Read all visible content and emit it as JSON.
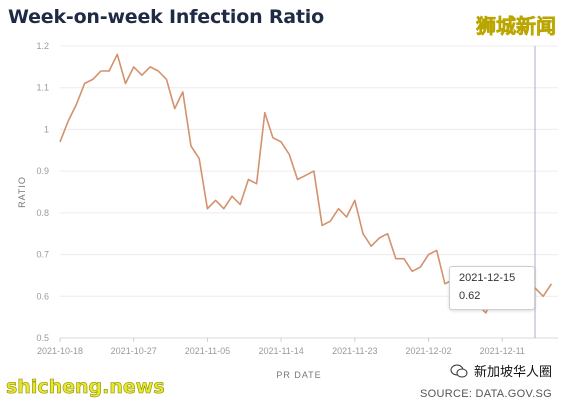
{
  "title": "Week-on-week Infection Ratio",
  "watermarks": {
    "top_right": "狮城新闻",
    "bottom_left": "shicheng.news",
    "bottom_right": "新加坡华人圈"
  },
  "source": "SOURCE: DATA.GOV.SG",
  "tooltip": {
    "date": "2021-12-15",
    "value": "0.62"
  },
  "colors": {
    "line": "#d4916e",
    "grid": "#ececec",
    "title": "#1f2a44",
    "crosshair": "#b9a9c9"
  },
  "chart_data": {
    "type": "line",
    "title": "Week-on-week Infection Ratio",
    "xlabel": "PR DATE",
    "ylabel": "RATIO",
    "ylim": [
      0.5,
      1.2
    ],
    "yticks": [
      0.5,
      0.6,
      0.7,
      0.8,
      0.9,
      1,
      1.1,
      1.2
    ],
    "ytick_labels": [
      "0.5",
      "0.6",
      "0.7",
      "0.8",
      "0.9",
      "1",
      "1.1",
      "1.2"
    ],
    "xticks": [
      "2021-10-18",
      "2021-10-27",
      "2021-11-05",
      "2021-11-14",
      "2021-11-23",
      "2021-12-02",
      "2021-12-11"
    ],
    "xrange": [
      "2021-10-18",
      "2021-12-17"
    ],
    "grid": true,
    "highlight": {
      "date": "2021-12-15",
      "value": 0.62
    },
    "series": [
      {
        "x": [
          "2021-10-18",
          "2021-10-19",
          "2021-10-20",
          "2021-10-21",
          "2021-10-22",
          "2021-10-23",
          "2021-10-24",
          "2021-10-25",
          "2021-10-26",
          "2021-10-27",
          "2021-10-28",
          "2021-10-29",
          "2021-10-30",
          "2021-10-31",
          "2021-11-01",
          "2021-11-02",
          "2021-11-03",
          "2021-11-04",
          "2021-11-05",
          "2021-11-06",
          "2021-11-07",
          "2021-11-08",
          "2021-11-09",
          "2021-11-10",
          "2021-11-11",
          "2021-11-12",
          "2021-11-13",
          "2021-11-14",
          "2021-11-15",
          "2021-11-16",
          "2021-11-17",
          "2021-11-18",
          "2021-11-19",
          "2021-11-20",
          "2021-11-21",
          "2021-11-22",
          "2021-11-23",
          "2021-11-24",
          "2021-11-25",
          "2021-11-26",
          "2021-11-27",
          "2021-11-28",
          "2021-11-29",
          "2021-11-30",
          "2021-12-01",
          "2021-12-02",
          "2021-12-03",
          "2021-12-04",
          "2021-12-05",
          "2021-12-06",
          "2021-12-07",
          "2021-12-08",
          "2021-12-09",
          "2021-12-10",
          "2021-12-11",
          "2021-12-12",
          "2021-12-13",
          "2021-12-14",
          "2021-12-15",
          "2021-12-16",
          "2021-12-17"
        ],
        "y": [
          0.97,
          1.02,
          1.06,
          1.11,
          1.12,
          1.14,
          1.14,
          1.18,
          1.11,
          1.15,
          1.13,
          1.15,
          1.14,
          1.12,
          1.05,
          1.09,
          0.96,
          0.93,
          0.81,
          0.83,
          0.81,
          0.84,
          0.82,
          0.88,
          0.87,
          1.04,
          0.98,
          0.97,
          0.94,
          0.88,
          0.89,
          0.9,
          0.77,
          0.78,
          0.81,
          0.79,
          0.83,
          0.75,
          0.72,
          0.74,
          0.75,
          0.69,
          0.69,
          0.66,
          0.67,
          0.7,
          0.71,
          0.63,
          0.64,
          0.62,
          0.6,
          0.58,
          0.56,
          0.61,
          0.6,
          0.6,
          0.6,
          0.6,
          0.62,
          0.6,
          0.63
        ]
      }
    ]
  }
}
